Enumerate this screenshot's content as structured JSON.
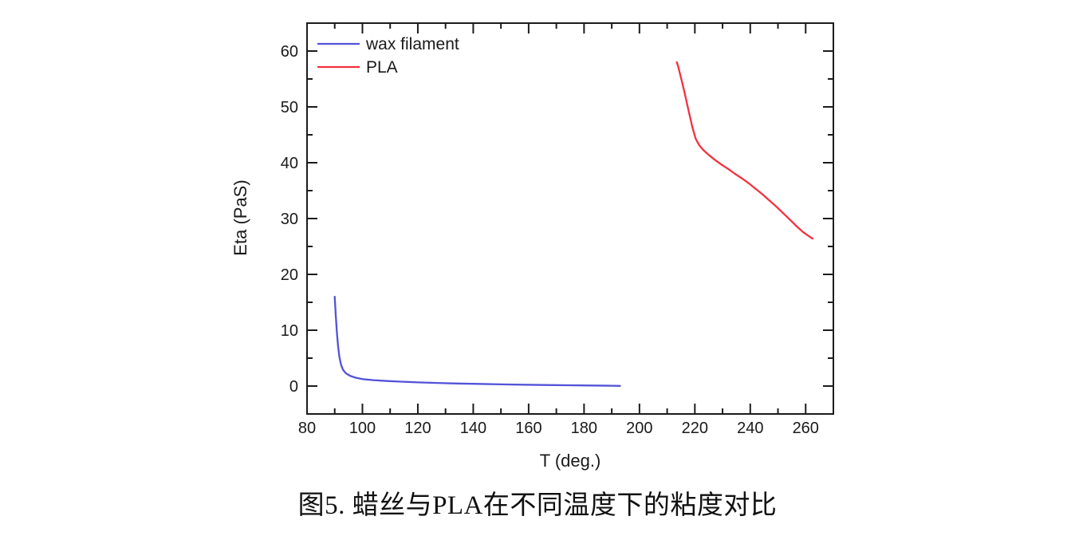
{
  "caption": "图5. 蜡丝与PLA在不同温度下的粘度对比",
  "chart_data": {
    "type": "line",
    "title": "",
    "xlabel": "T (deg.)",
    "ylabel": "Eta (PaS)",
    "xlim": [
      80,
      270
    ],
    "ylim": [
      -5,
      65
    ],
    "x_major_ticks": [
      80,
      100,
      120,
      140,
      160,
      180,
      200,
      220,
      240,
      260
    ],
    "x_minor_ticks": [
      90,
      110,
      130,
      150,
      170,
      190,
      210,
      230,
      250
    ],
    "y_major_ticks": [
      0,
      10,
      20,
      30,
      40,
      50,
      60
    ],
    "y_minor_ticks": [
      5,
      15,
      25,
      35,
      45,
      55
    ],
    "grid": false,
    "legend_position": "top-left",
    "frame_color": "#1c1c1c",
    "series": [
      {
        "name": "wax filament",
        "color": "#5353d9",
        "x": [
          90,
          90.4,
          90.8,
          91.2,
          91.7,
          92.3,
          93,
          94,
          95.5,
          97.5,
          100,
          104,
          109,
          114,
          120,
          127,
          134,
          142,
          150,
          158,
          166,
          174,
          182,
          190,
          193
        ],
        "y": [
          16,
          12.5,
          9.5,
          7.2,
          5.2,
          3.8,
          2.9,
          2.3,
          1.85,
          1.5,
          1.25,
          1.05,
          0.9,
          0.78,
          0.66,
          0.55,
          0.46,
          0.38,
          0.3,
          0.24,
          0.19,
          0.14,
          0.1,
          0.05,
          0.03
        ]
      },
      {
        "name": "PLA",
        "color": "#f2323f",
        "x": [
          213.5,
          214,
          214.7,
          215.5,
          216.3,
          217.2,
          218.2,
          219.2,
          220.3,
          221.5,
          223,
          225,
          227,
          229.5,
          232,
          234.5,
          237,
          239.5,
          242,
          244.5,
          247,
          249.5,
          252,
          254.5,
          257,
          259,
          261,
          262.5
        ],
        "y": [
          58,
          57.2,
          55.8,
          54.2,
          52.5,
          50.5,
          48.3,
          46.2,
          44.3,
          43.2,
          42.3,
          41.4,
          40.6,
          39.7,
          38.9,
          38.0,
          37.2,
          36.3,
          35.3,
          34.3,
          33.2,
          32.1,
          30.9,
          29.7,
          28.5,
          27.6,
          26.9,
          26.4
        ]
      }
    ]
  }
}
